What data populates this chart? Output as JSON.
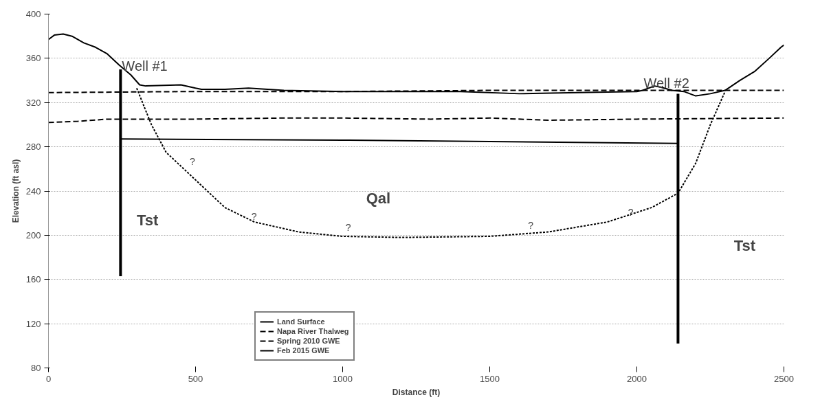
{
  "chart_data": {
    "type": "line",
    "xlabel": "Distance (ft)",
    "ylabel": "Elevation (ft asl)",
    "xlim": [
      0,
      2500
    ],
    "xticks": [
      0,
      500,
      1000,
      1500,
      2000,
      2500
    ],
    "ylim": [
      80,
      400
    ],
    "yticks": [
      80,
      120,
      160,
      200,
      240,
      280,
      320,
      360,
      400
    ],
    "grid": "y",
    "legend": "bottom left",
    "marker": "none",
    "series": [
      {
        "name": "Land Surface",
        "color": "#000000",
        "line_style": "solid",
        "x": [
          0,
          20,
          50,
          80,
          120,
          160,
          200,
          240,
          280,
          310,
          330,
          450,
          500,
          520,
          600,
          680,
          800,
          1000,
          1200,
          1400,
          1600,
          1800,
          2000,
          2020,
          2060,
          2080,
          2120,
          2160,
          2200,
          2250,
          2300,
          2350,
          2400,
          2450,
          2490,
          2500
        ],
        "values": [
          377,
          381,
          382,
          380,
          374,
          370,
          364,
          354,
          345,
          336,
          335,
          336,
          333,
          332,
          332,
          333,
          331,
          330,
          330,
          330,
          328,
          329,
          330,
          331,
          335,
          334,
          331,
          330,
          326,
          328,
          331,
          340,
          348,
          360,
          370,
          372
        ]
      },
      {
        "name": "Napa River Thalweg",
        "color": "#000000",
        "line_style": "dashed",
        "x": [
          0,
          500,
          1000,
          1500,
          2000,
          2500
        ],
        "values": [
          329,
          330,
          330,
          331,
          331,
          331
        ]
      },
      {
        "name": "Spring 2010 GWE",
        "color": "#000000",
        "line_style": "dashed",
        "x": [
          0,
          100,
          200,
          500,
          800,
          1000,
          1300,
          1500,
          1700,
          2000,
          2500
        ],
        "values": [
          302,
          303,
          305,
          305,
          306,
          306,
          305,
          306,
          304,
          305,
          306
        ]
      },
      {
        "name": "Feb 2015 GWE",
        "color": "#000000",
        "line_style": "solid",
        "x": [
          245,
          1000,
          2140
        ],
        "values": [
          287,
          286,
          283
        ]
      },
      {
        "color": "#000000",
        "line_style": "dotted",
        "x": [
          300,
          350,
          400,
          480,
          600,
          700,
          850,
          1000,
          1200,
          1500,
          1700,
          1900,
          2050,
          2140,
          2200,
          2250,
          2300
        ],
        "values": [
          333,
          300,
          275,
          255,
          225,
          212,
          203,
          199,
          198,
          199,
          203,
          212,
          225,
          238,
          265,
          300,
          330
        ]
      },
      {
        "color": "#000000",
        "line_style": "solid",
        "x": [
          245,
          245
        ],
        "values": [
          350,
          163
        ]
      },
      {
        "color": "#000000",
        "line_style": "solid",
        "x": [
          2140,
          2140
        ],
        "values": [
          328,
          102
        ]
      }
    ],
    "annotations": [
      {
        "text": "Well #1",
        "x": 245,
        "y": 350
      },
      {
        "text": "Well #2",
        "x": 2140,
        "y": 328
      },
      "Tst",
      "Qal",
      "Tst",
      "?",
      "?",
      "?",
      "?",
      "?"
    ]
  }
}
